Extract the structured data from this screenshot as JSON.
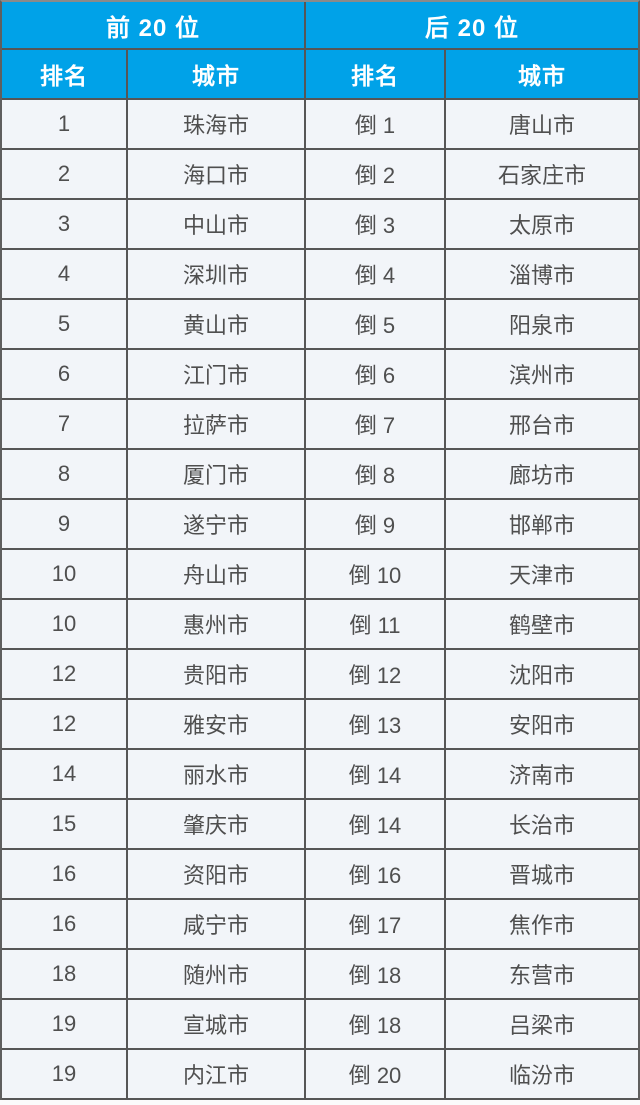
{
  "table": {
    "header": {
      "left_group": "前 20 位",
      "right_group": "后 20 位",
      "left_rank": "排名",
      "left_city": "城市",
      "right_rank": "排名",
      "right_city": "城市"
    },
    "rows": [
      {
        "rank_left": "1",
        "city_left": "珠海市",
        "rank_right": "倒 1",
        "city_right": "唐山市"
      },
      {
        "rank_left": "2",
        "city_left": "海口市",
        "rank_right": "倒 2",
        "city_right": "石家庄市"
      },
      {
        "rank_left": "3",
        "city_left": "中山市",
        "rank_right": "倒 3",
        "city_right": "太原市"
      },
      {
        "rank_left": "4",
        "city_left": "深圳市",
        "rank_right": "倒 4",
        "city_right": "淄博市"
      },
      {
        "rank_left": "5",
        "city_left": "黄山市",
        "rank_right": "倒 5",
        "city_right": "阳泉市"
      },
      {
        "rank_left": "6",
        "city_left": "江门市",
        "rank_right": "倒 6",
        "city_right": "滨州市"
      },
      {
        "rank_left": "7",
        "city_left": "拉萨市",
        "rank_right": "倒 7",
        "city_right": "邢台市"
      },
      {
        "rank_left": "8",
        "city_left": "厦门市",
        "rank_right": "倒 8",
        "city_right": "廊坊市"
      },
      {
        "rank_left": "9",
        "city_left": "遂宁市",
        "rank_right": "倒 9",
        "city_right": "邯郸市"
      },
      {
        "rank_left": "10",
        "city_left": "舟山市",
        "rank_right": "倒 10",
        "city_right": "天津市"
      },
      {
        "rank_left": "10",
        "city_left": "惠州市",
        "rank_right": "倒 11",
        "city_right": "鹤壁市"
      },
      {
        "rank_left": "12",
        "city_left": "贵阳市",
        "rank_right": "倒 12",
        "city_right": "沈阳市"
      },
      {
        "rank_left": "12",
        "city_left": "雅安市",
        "rank_right": "倒 13",
        "city_right": "安阳市"
      },
      {
        "rank_left": "14",
        "city_left": "丽水市",
        "rank_right": "倒 14",
        "city_right": "济南市"
      },
      {
        "rank_left": "15",
        "city_left": "肇庆市",
        "rank_right": "倒 14",
        "city_right": "长治市"
      },
      {
        "rank_left": "16",
        "city_left": "资阳市",
        "rank_right": "倒 16",
        "city_right": "晋城市"
      },
      {
        "rank_left": "16",
        "city_left": "咸宁市",
        "rank_right": "倒 17",
        "city_right": "焦作市"
      },
      {
        "rank_left": "18",
        "city_left": "随州市",
        "rank_right": "倒 18",
        "city_right": "东营市"
      },
      {
        "rank_left": "19",
        "city_left": "宣城市",
        "rank_right": "倒 18",
        "city_right": "吕梁市"
      },
      {
        "rank_left": "19",
        "city_left": "内江市",
        "rank_right": "倒 20",
        "city_right": "临汾市"
      }
    ]
  },
  "colors": {
    "header_bg": "#00a2e8",
    "header_text": "#ffffff",
    "grid_line": "#565656",
    "row_bg": "#f2f5f9",
    "body_text": "#4f4f4f",
    "page_bg": "#fbfbfb"
  },
  "chart_data": {
    "type": "table",
    "title": "",
    "columns": [
      "前20位 排名",
      "前20位 城市",
      "后20位 排名",
      "后20位 城市"
    ],
    "rows": [
      [
        "1",
        "珠海市",
        "倒1",
        "唐山市"
      ],
      [
        "2",
        "海口市",
        "倒2",
        "石家庄市"
      ],
      [
        "3",
        "中山市",
        "倒3",
        "太原市"
      ],
      [
        "4",
        "深圳市",
        "倒4",
        "淄博市"
      ],
      [
        "5",
        "黄山市",
        "倒5",
        "阳泉市"
      ],
      [
        "6",
        "江门市",
        "倒6",
        "滨州市"
      ],
      [
        "7",
        "拉萨市",
        "倒7",
        "邢台市"
      ],
      [
        "8",
        "厦门市",
        "倒8",
        "廊坊市"
      ],
      [
        "9",
        "遂宁市",
        "倒9",
        "邯郸市"
      ],
      [
        "10",
        "舟山市",
        "倒10",
        "天津市"
      ],
      [
        "10",
        "惠州市",
        "倒11",
        "鹤壁市"
      ],
      [
        "12",
        "贵阳市",
        "倒12",
        "沈阳市"
      ],
      [
        "12",
        "雅安市",
        "倒13",
        "安阳市"
      ],
      [
        "14",
        "丽水市",
        "倒14",
        "济南市"
      ],
      [
        "15",
        "肇庆市",
        "倒14",
        "长治市"
      ],
      [
        "16",
        "资阳市",
        "倒16",
        "晋城市"
      ],
      [
        "16",
        "咸宁市",
        "倒17",
        "焦作市"
      ],
      [
        "18",
        "随州市",
        "倒18",
        "东营市"
      ],
      [
        "19",
        "宣城市",
        "倒18",
        "吕梁市"
      ],
      [
        "19",
        "内江市",
        "倒20",
        "临汾市"
      ]
    ]
  }
}
